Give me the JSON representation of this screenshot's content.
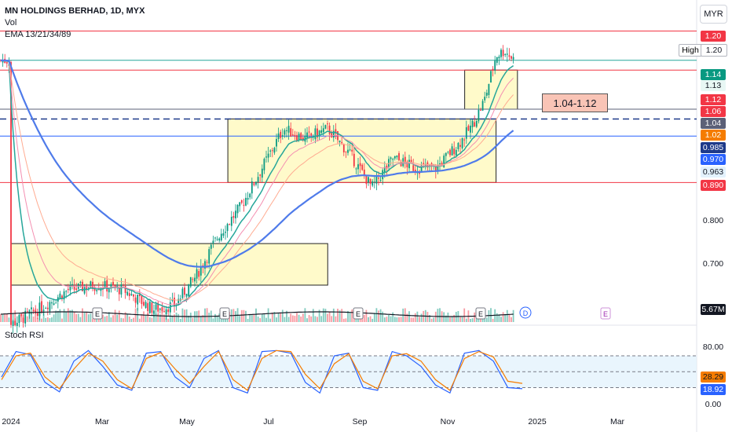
{
  "header": {
    "title": "MN HOLDINGS BERHAD, 1D, MYX",
    "indicators": [
      "Vol",
      "EMA 13/21/34/89"
    ],
    "currency": "MYR"
  },
  "rsi_panel": {
    "title": "Stoch RSI"
  },
  "zone_label": "1.04-1.12",
  "high_label": {
    "text": "High",
    "value": "1.20"
  },
  "price_tags": [
    {
      "text": "1.20",
      "value": 1.2,
      "bg": "#f23645",
      "fg": "#ffffff"
    },
    {
      "text": "1.14",
      "value": 1.14,
      "bg": "#089981",
      "fg": "#ffffff"
    },
    {
      "text": "1.13",
      "value": 1.13,
      "bg": "#e8f7f4",
      "fg": "#131722"
    },
    {
      "text": "1.12",
      "value": 1.12,
      "bg": "#f23645",
      "fg": "#ffffff"
    },
    {
      "text": "1.06",
      "value": 1.06,
      "bg": "#f23645",
      "fg": "#ffffff"
    },
    {
      "text": "1.04",
      "value": 1.04,
      "bg": "#5b6077",
      "fg": "#ffffff"
    },
    {
      "text": "1.02",
      "value": 1.02,
      "bg": "#f57c00",
      "fg": "#ffffff"
    },
    {
      "text": "0.985",
      "value": 0.985,
      "bg": "#1e3a8a",
      "fg": "#ffffff"
    },
    {
      "text": "0.970",
      "value": 0.97,
      "bg": "#2962ff",
      "fg": "#ffffff"
    },
    {
      "text": "0.963",
      "value": 0.963,
      "bg": "#e3f2fd",
      "fg": "#131722"
    },
    {
      "text": "0.890",
      "value": 0.89,
      "bg": "#f23645",
      "fg": "#ffffff"
    }
  ],
  "volume_tags": [
    {
      "text": "5.67M",
      "bg": "#131722",
      "fg": "#ffffff"
    }
  ],
  "rsi_tags": [
    {
      "text": "28.29",
      "value": 28.29,
      "bg": "#f57c00",
      "fg": "#131722"
    },
    {
      "text": "18.92",
      "value": 18.92,
      "bg": "#2962ff",
      "fg": "#ffffff"
    }
  ],
  "earnings_marker": "E",
  "dividend_marker": "D",
  "chart_data": {
    "type": "candlestick",
    "price_axis_ticks": [
      "0.800",
      "0.700"
    ],
    "rsi_axis_ticks": [
      "80.00",
      "0.00"
    ],
    "x_tick_labels": [
      "2024",
      "Mar",
      "May",
      "Jul",
      "Sep",
      "Nov",
      "2025",
      "Mar"
    ],
    "ylim": [
      0.59,
      1.22
    ],
    "rsi_ylim": [
      0,
      100
    ],
    "horizontal_lines": [
      {
        "value": 1.2,
        "color": "#f23645",
        "style": "solid"
      },
      {
        "value": 1.14,
        "color": "#26a69a",
        "style": "solid"
      },
      {
        "value": 1.12,
        "color": "#f23645",
        "style": "solid"
      },
      {
        "value": 1.04,
        "color": "#5b6077",
        "style": "solid"
      },
      {
        "value": 1.02,
        "color": "#1e3a8a",
        "style": "dashed"
      },
      {
        "value": 0.985,
        "color": "#2962ff",
        "style": "solid"
      },
      {
        "value": 0.89,
        "color": "#f23645",
        "style": "solid"
      }
    ],
    "zones": [
      {
        "from_date": "2024-01-01",
        "to_date": "2024-08-10",
        "top": 0.765,
        "bottom": 0.68
      },
      {
        "from_date": "2024-06-01",
        "to_date": "2024-12-06",
        "top": 1.02,
        "bottom": 0.89
      },
      {
        "from_date": "2024-11-14",
        "to_date": "2024-12-21",
        "top": 1.12,
        "bottom": 1.04
      }
    ],
    "close_series": [
      {
        "date": "2024-01-01",
        "close": 0.6
      },
      {
        "date": "2024-01-20",
        "close": 0.63
      },
      {
        "date": "2024-02-10",
        "close": 0.67
      },
      {
        "date": "2024-03-01",
        "close": 0.68
      },
      {
        "date": "2024-03-20",
        "close": 0.67
      },
      {
        "date": "2024-04-10",
        "close": 0.63
      },
      {
        "date": "2024-04-25",
        "close": 0.64
      },
      {
        "date": "2024-05-10",
        "close": 0.7
      },
      {
        "date": "2024-05-25",
        "close": 0.78
      },
      {
        "date": "2024-06-10",
        "close": 0.84
      },
      {
        "date": "2024-06-25",
        "close": 0.92
      },
      {
        "date": "2024-07-10",
        "close": 1.0
      },
      {
        "date": "2024-07-25",
        "close": 0.98
      },
      {
        "date": "2024-08-10",
        "close": 1.0
      },
      {
        "date": "2024-08-25",
        "close": 0.95
      },
      {
        "date": "2024-09-10",
        "close": 0.88
      },
      {
        "date": "2024-09-25",
        "close": 0.94
      },
      {
        "date": "2024-10-10",
        "close": 0.92
      },
      {
        "date": "2024-10-25",
        "close": 0.92
      },
      {
        "date": "2024-11-10",
        "close": 0.97
      },
      {
        "date": "2024-11-20",
        "close": 1.01
      },
      {
        "date": "2024-11-28",
        "close": 1.06
      },
      {
        "date": "2024-12-06",
        "close": 1.15
      },
      {
        "date": "2024-12-12",
        "close": 1.16
      },
      {
        "date": "2024-12-19",
        "close": 1.14
      }
    ],
    "stoch_k": [
      40,
      88,
      82,
      30,
      12,
      70,
      90,
      60,
      25,
      15,
      85,
      88,
      40,
      20,
      75,
      90,
      20,
      10,
      88,
      90,
      85,
      30,
      10,
      80,
      85,
      20,
      15,
      88,
      80,
      60,
      25,
      10,
      85,
      90,
      70,
      20,
      18
    ],
    "stoch_d": [
      35,
      80,
      85,
      40,
      18,
      55,
      85,
      70,
      35,
      18,
      75,
      86,
      55,
      28,
      60,
      88,
      35,
      15,
      75,
      90,
      88,
      45,
      18,
      65,
      84,
      32,
      18,
      80,
      84,
      70,
      35,
      15,
      75,
      88,
      78,
      32,
      28
    ]
  }
}
